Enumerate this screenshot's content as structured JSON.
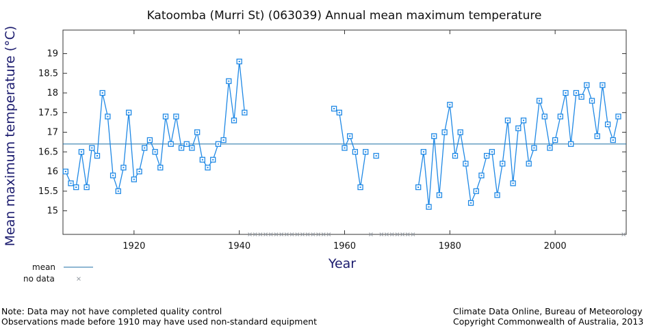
{
  "colors": {
    "series": "#1e88e5",
    "marker": "#1e88e5",
    "mean": "#1c6ea4",
    "nodata": "#9aa0a8",
    "axis": "#333333",
    "label": "#1b1b6e"
  },
  "chart_data": {
    "type": "line",
    "title": "Katoomba (Murri St) (063039) Annual mean maximum temperature",
    "xlabel": "Year",
    "ylabel": "Mean maximum temperature (°C)",
    "xlim": [
      1906.5,
      2013.5
    ],
    "ylim": [
      14.4,
      19.6
    ],
    "xticks": [
      1920,
      1940,
      1960,
      1980,
      2000
    ],
    "yticks": [
      15,
      15.5,
      16,
      16.5,
      17,
      17.5,
      18,
      18.5,
      19
    ],
    "xtick_labels": [
      "1920",
      "1940",
      "1960",
      "1980",
      "2000"
    ],
    "ytick_labels": [
      "15",
      "15.5",
      "16",
      "16.5",
      "17",
      "17.5",
      "18",
      "18.5",
      "19"
    ],
    "grid": false,
    "mean": 16.7,
    "series": [
      {
        "values": [
          [
            1907,
            16.0
          ],
          [
            1908,
            15.7
          ],
          [
            1909,
            15.6
          ],
          [
            1910,
            16.5
          ],
          [
            1911,
            15.6
          ],
          [
            1912,
            16.6
          ],
          [
            1913,
            16.4
          ],
          [
            1914,
            18.0
          ],
          [
            1915,
            17.4
          ],
          [
            1916,
            15.9
          ],
          [
            1917,
            15.5
          ],
          [
            1918,
            16.1
          ],
          [
            1919,
            17.5
          ],
          [
            1920,
            15.8
          ],
          [
            1921,
            16.0
          ],
          [
            1922,
            16.6
          ],
          [
            1923,
            16.8
          ],
          [
            1924,
            16.5
          ],
          [
            1925,
            16.1
          ],
          [
            1926,
            17.4
          ],
          [
            1927,
            16.7
          ],
          [
            1928,
            17.4
          ],
          [
            1929,
            16.6
          ],
          [
            1930,
            16.7
          ],
          [
            1931,
            16.6
          ],
          [
            1932,
            17.0
          ],
          [
            1933,
            16.3
          ],
          [
            1934,
            16.1
          ],
          [
            1935,
            16.3
          ],
          [
            1936,
            16.7
          ],
          [
            1937,
            16.8
          ],
          [
            1938,
            18.3
          ],
          [
            1939,
            17.3
          ],
          [
            1940,
            18.8
          ],
          [
            1941,
            17.5
          ],
          null,
          [
            1958,
            17.6
          ],
          [
            1959,
            17.5
          ],
          [
            1960,
            16.6
          ],
          [
            1961,
            16.9
          ],
          [
            1962,
            16.5
          ],
          [
            1963,
            15.6
          ],
          [
            1964,
            16.5
          ],
          null,
          [
            1966,
            16.4
          ],
          null,
          [
            1974,
            15.6
          ],
          [
            1975,
            16.5
          ],
          [
            1976,
            15.1
          ],
          [
            1977,
            16.9
          ],
          [
            1978,
            15.4
          ],
          [
            1979,
            17.0
          ],
          [
            1980,
            17.7
          ],
          [
            1981,
            16.4
          ],
          [
            1982,
            17.0
          ],
          [
            1983,
            16.2
          ],
          [
            1984,
            15.2
          ],
          [
            1985,
            15.5
          ],
          [
            1986,
            15.9
          ],
          [
            1987,
            16.4
          ],
          [
            1988,
            16.5
          ],
          [
            1989,
            15.4
          ],
          [
            1990,
            16.2
          ],
          [
            1991,
            17.3
          ],
          [
            1992,
            15.7
          ],
          [
            1993,
            17.1
          ],
          [
            1994,
            17.3
          ],
          [
            1995,
            16.2
          ],
          [
            1996,
            16.6
          ],
          [
            1997,
            17.8
          ],
          [
            1998,
            17.4
          ],
          [
            1999,
            16.6
          ],
          [
            2000,
            16.8
          ],
          [
            2001,
            17.4
          ],
          [
            2002,
            18.0
          ],
          [
            2003,
            16.7
          ],
          [
            2004,
            18.0
          ],
          [
            2005,
            17.9
          ],
          [
            2006,
            18.2
          ],
          [
            2007,
            17.8
          ],
          [
            2008,
            16.9
          ],
          [
            2009,
            18.2
          ],
          [
            2010,
            17.2
          ],
          [
            2011,
            16.8
          ],
          [
            2012,
            17.4
          ]
        ]
      }
    ],
    "no_data_years": [
      1942,
      1943,
      1944,
      1945,
      1946,
      1947,
      1948,
      1949,
      1950,
      1951,
      1952,
      1953,
      1954,
      1955,
      1956,
      1957,
      1965,
      1967,
      1968,
      1969,
      1970,
      1971,
      1972,
      1973,
      2013
    ],
    "legend": {
      "placement": "bottom-left",
      "mean_label": "mean",
      "nodata_label": "no data"
    }
  },
  "notes": {
    "left_line1": "Note: Data may not have completed quality control",
    "left_line2": "Observations made before 1910 may have used non-standard equipment",
    "right_line1": "Climate Data Online, Bureau of Meteorology",
    "right_line2": "Copyright Commonwealth of Australia, 2013"
  }
}
